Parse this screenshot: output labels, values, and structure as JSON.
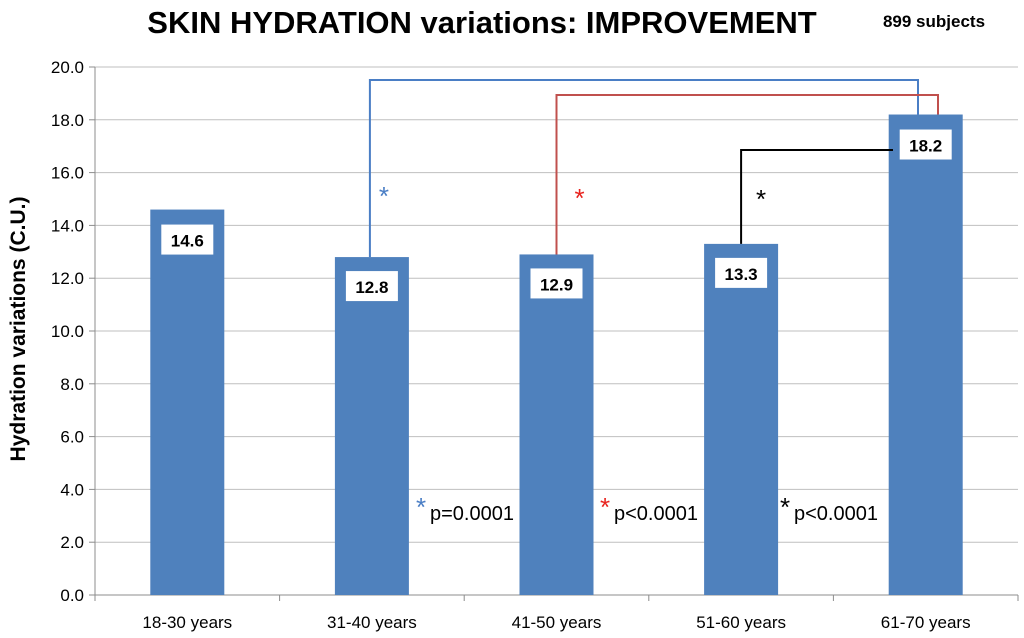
{
  "chart_data": {
    "type": "bar",
    "title": "SKIN HYDRATION variations: IMPROVEMENT",
    "subtitle": "899 subjects",
    "ylabel": "Hydration variations (C.U.)",
    "xlabel": "",
    "ylim": [
      0,
      20
    ],
    "ytick_step": 2,
    "ytick_labels": [
      "0.0",
      "2.0",
      "4.0",
      "6.0",
      "8.0",
      "10.0",
      "12.0",
      "14.0",
      "16.0",
      "18.0",
      "20.0"
    ],
    "categories": [
      "18-30 years",
      "31-40 years",
      "41-50 years",
      "51-60 years",
      "61-70 years"
    ],
    "values": [
      14.6,
      12.8,
      12.9,
      13.3,
      18.2
    ],
    "value_labels": [
      "14.6",
      "12.8",
      "12.9",
      "13.3",
      "18.2"
    ],
    "bar_color": "#4F81BD",
    "grid": true,
    "legend": "none",
    "comparisons": [
      {
        "from": "31-40 years",
        "to": "61-70 years",
        "color": "#4A7EC5",
        "marker": "*",
        "p_value": "p=0.0001"
      },
      {
        "from": "41-50 years",
        "to": "61-70 years",
        "color": "#C0504D",
        "marker": "*",
        "star_color": "#E8231E",
        "p_value": "p<0.0001"
      },
      {
        "from": "51-60 years",
        "to": "61-70 years",
        "color": "#000000",
        "marker": "*",
        "p_value": "p<0.0001"
      }
    ]
  }
}
